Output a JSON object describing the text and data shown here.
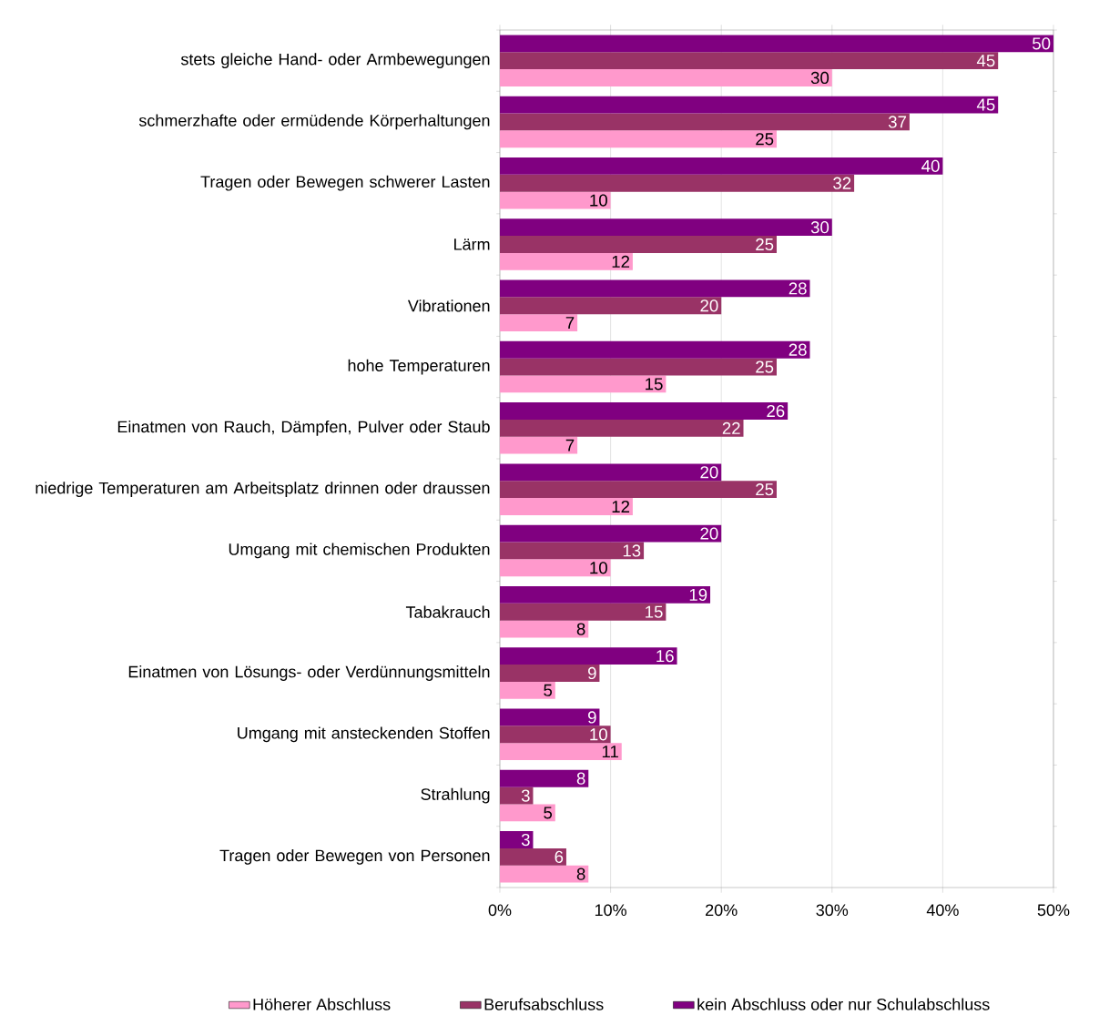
{
  "chart_data": {
    "type": "bar",
    "orientation": "horizontal",
    "categories": [
      "stets gleiche Hand- oder Armbewegungen",
      "schmerzhafte oder ermüdende Körperhaltungen",
      "Tragen oder Bewegen schwerer Lasten",
      "Lärm",
      "Vibrationen",
      "hohe Temperaturen",
      "Einatmen von Rauch, Dämpfen, Pulver oder Staub",
      "niedrige Temperaturen am  Arbeitsplatz drinnen oder draussen",
      "Umgang mit chemischen Produkten",
      "Tabakrauch",
      "Einatmen von Lösungs- oder Verdünnungsmitteln",
      "Umgang mit ansteckenden Stoffen",
      "Strahlung",
      "Tragen oder Bewegen von Personen"
    ],
    "series": [
      {
        "name": "Höherer Abschluss",
        "color": "#ff99cc",
        "values": [
          30,
          25,
          10,
          12,
          7,
          15,
          7,
          12,
          10,
          8,
          5,
          11,
          5,
          8
        ]
      },
      {
        "name": "Berufsabschluss",
        "color": "#993366",
        "values": [
          45,
          37,
          32,
          25,
          20,
          25,
          22,
          25,
          13,
          15,
          9,
          10,
          3,
          6
        ]
      },
      {
        "name": "kein Abschluss oder nur Schulabschluss",
        "color": "#800080",
        "values": [
          50,
          45,
          40,
          30,
          28,
          28,
          26,
          20,
          20,
          19,
          16,
          9,
          8,
          3
        ]
      }
    ],
    "xlim": [
      0,
      50
    ],
    "xticks": [
      {
        "value": 0,
        "label": "0%"
      },
      {
        "value": 10,
        "label": "10%"
      },
      {
        "value": 20,
        "label": "20%"
      },
      {
        "value": 30,
        "label": "30%"
      },
      {
        "value": 40,
        "label": "40%"
      },
      {
        "value": 50,
        "label": "50%"
      }
    ],
    "grid": "x",
    "legend": "bottom",
    "data_labels": true
  }
}
